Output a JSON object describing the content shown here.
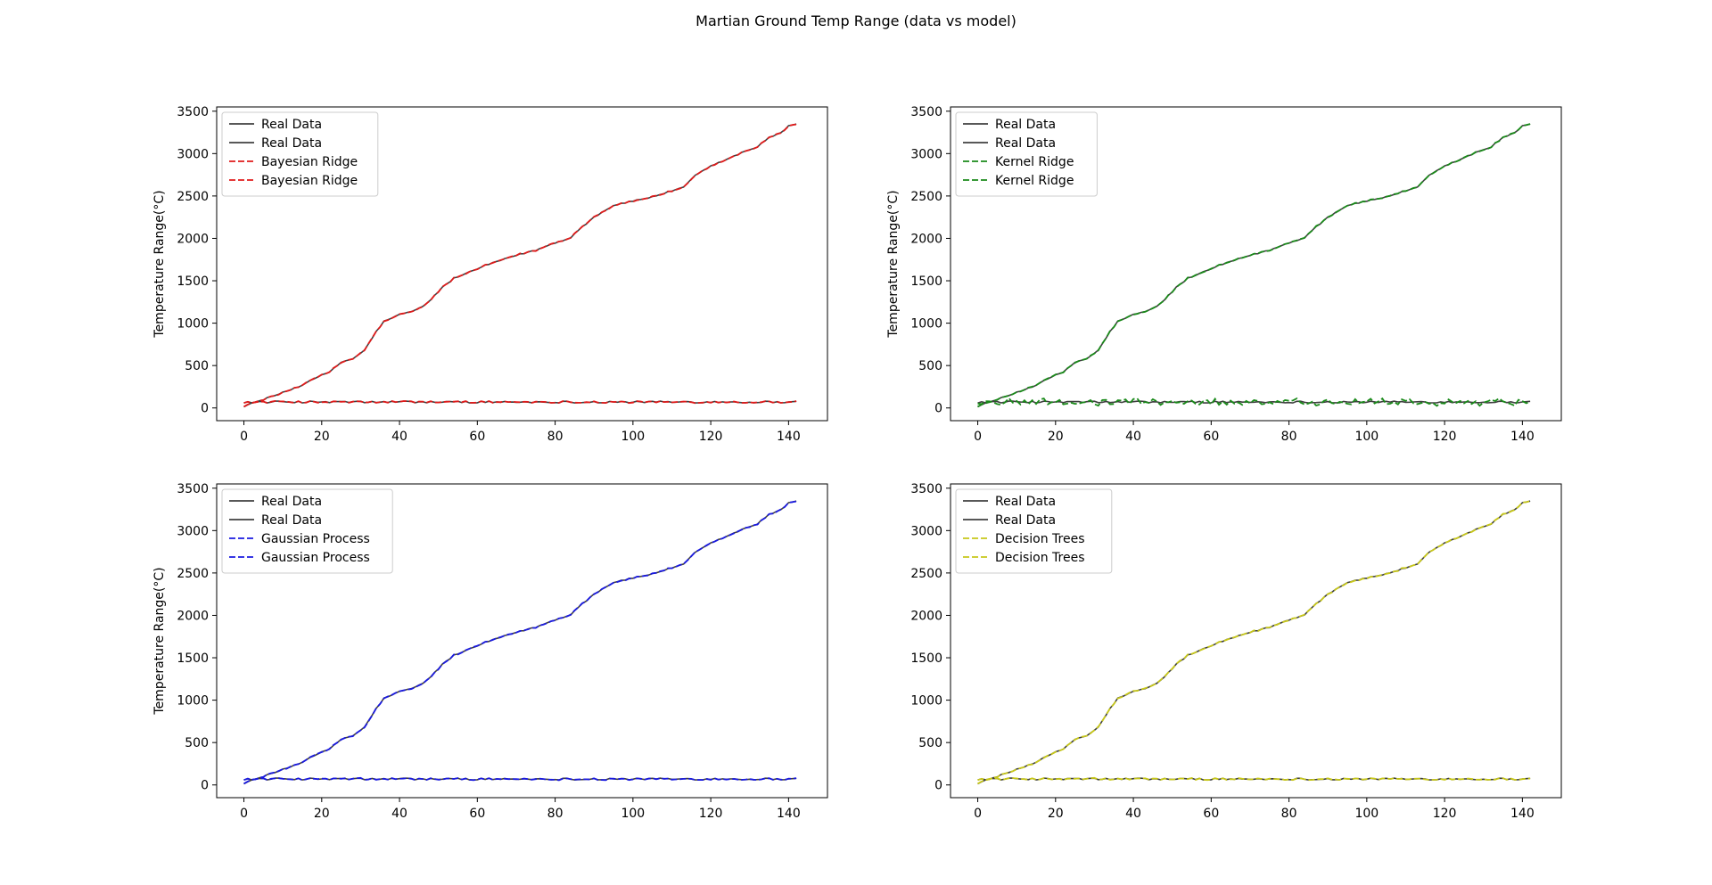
{
  "figure": {
    "title": "Martian Ground Temp Range (data vs model)"
  },
  "chart_data": [
    {
      "type": "line",
      "ylabel": "Temperature Range(°C)",
      "xlabel": "",
      "xlim": [
        -7,
        150
      ],
      "ylim": [
        -150,
        3550
      ],
      "xticks": [
        0,
        20,
        40,
        60,
        80,
        100,
        120,
        140
      ],
      "yticks": [
        0,
        500,
        1000,
        1500,
        2000,
        2500,
        3000,
        3500
      ],
      "legend_position": "upper-left",
      "real_color": "#404040",
      "model_color": "#e01b1b",
      "series": [
        {
          "name": "Real Data",
          "role": "real-cumulative"
        },
        {
          "name": "Real Data",
          "role": "real-daily"
        },
        {
          "name": "Bayesian Ridge",
          "role": "model-cumulative"
        },
        {
          "name": "Bayesian Ridge",
          "role": "model-daily"
        }
      ]
    },
    {
      "type": "line",
      "ylabel": "Temperature Range(°C)",
      "xlabel": "",
      "xlim": [
        -7,
        150
      ],
      "ylim": [
        -150,
        3550
      ],
      "xticks": [
        0,
        20,
        40,
        60,
        80,
        100,
        120,
        140
      ],
      "yticks": [
        0,
        500,
        1000,
        1500,
        2000,
        2500,
        3000,
        3500
      ],
      "legend_position": "upper-left",
      "real_color": "#404040",
      "model_color": "#1a8a1a",
      "series": [
        {
          "name": "Real Data",
          "role": "real-cumulative"
        },
        {
          "name": "Real Data",
          "role": "real-daily"
        },
        {
          "name": "Kernel Ridge",
          "role": "model-cumulative"
        },
        {
          "name": "Kernel Ridge",
          "role": "model-daily"
        }
      ]
    },
    {
      "type": "line",
      "ylabel": "Temperature Range(°C)",
      "xlabel": "",
      "xlim": [
        -7,
        150
      ],
      "ylim": [
        -150,
        3550
      ],
      "xticks": [
        0,
        20,
        40,
        60,
        80,
        100,
        120,
        140
      ],
      "yticks": [
        0,
        500,
        1000,
        1500,
        2000,
        2500,
        3000,
        3500
      ],
      "legend_position": "upper-left",
      "real_color": "#404040",
      "model_color": "#1a1ae0",
      "series": [
        {
          "name": "Real Data",
          "role": "real-cumulative"
        },
        {
          "name": "Real Data",
          "role": "real-daily"
        },
        {
          "name": "Gaussian Process",
          "role": "model-cumulative"
        },
        {
          "name": "Gaussian Process",
          "role": "model-daily"
        }
      ]
    },
    {
      "type": "line",
      "ylabel": "",
      "xlabel": "",
      "xlim": [
        -7,
        150
      ],
      "ylim": [
        -150,
        3550
      ],
      "xticks": [
        0,
        20,
        40,
        60,
        80,
        100,
        120,
        140
      ],
      "yticks": [
        0,
        500,
        1000,
        1500,
        2000,
        2500,
        3000,
        3500
      ],
      "legend_position": "upper-left",
      "real_color": "#404040",
      "model_color": "#c8c81a",
      "series": [
        {
          "name": "Real Data",
          "role": "real-cumulative"
        },
        {
          "name": "Real Data",
          "role": "real-daily"
        },
        {
          "name": "Decision Trees",
          "role": "model-cumulative"
        },
        {
          "name": "Decision Trees",
          "role": "model-daily"
        }
      ]
    }
  ],
  "cumulative_anchor_points": [
    [
      0,
      20
    ],
    [
      5,
      100
    ],
    [
      10,
      180
    ],
    [
      15,
      270
    ],
    [
      18,
      350
    ],
    [
      22,
      420
    ],
    [
      25,
      540
    ],
    [
      28,
      580
    ],
    [
      31,
      680
    ],
    [
      34,
      900
    ],
    [
      36,
      1020
    ],
    [
      40,
      1100
    ],
    [
      44,
      1150
    ],
    [
      47,
      1230
    ],
    [
      51,
      1420
    ],
    [
      54,
      1530
    ],
    [
      58,
      1600
    ],
    [
      62,
      1680
    ],
    [
      66,
      1740
    ],
    [
      70,
      1800
    ],
    [
      75,
      1860
    ],
    [
      79,
      1930
    ],
    [
      84,
      2010
    ],
    [
      86,
      2100
    ],
    [
      90,
      2250
    ],
    [
      95,
      2390
    ],
    [
      100,
      2440
    ],
    [
      105,
      2490
    ],
    [
      110,
      2560
    ],
    [
      113,
      2600
    ],
    [
      116,
      2740
    ],
    [
      120,
      2850
    ],
    [
      124,
      2930
    ],
    [
      128,
      3010
    ],
    [
      132,
      3080
    ],
    [
      135,
      3190
    ],
    [
      138,
      3240
    ],
    [
      140,
      3330
    ],
    [
      142,
      3350
    ]
  ],
  "daily_level": 70
}
